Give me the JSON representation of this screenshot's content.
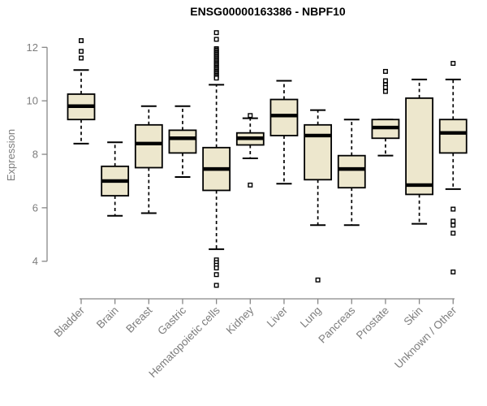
{
  "title": "ENSG00000163386 - NBPF10",
  "y_axis": {
    "label": "Expression"
  },
  "colors": {
    "background": "#FFFFFF",
    "box_fill": "#EDE7CD",
    "box_stroke": "#000000",
    "median": "#000000",
    "axis": "#878787",
    "label_text": "#7D7D7D",
    "title_text": "#000000"
  },
  "chart_data": {
    "type": "boxplot",
    "title": "ENSG00000163386 - NBPF10",
    "xlabel": "",
    "ylabel": "Expression",
    "yticks": [
      4,
      6,
      8,
      10,
      12
    ],
    "ylim": [
      2.9,
      12.8
    ],
    "grid": false,
    "legend": "none",
    "categories": [
      "Bladder",
      "Brain",
      "Breast",
      "Gastric",
      "Hematopoietic cells",
      "Kidney",
      "Liver",
      "Lung",
      "Pancreas",
      "Prostate",
      "Skin",
      "Unknown / Other"
    ],
    "series": [
      {
        "name": "Bladder",
        "whisker_low": 8.4,
        "q1": 9.3,
        "median": 9.8,
        "q3": 10.25,
        "whisker_high": 11.15,
        "outliers_high": [
          11.6,
          11.85,
          12.25
        ],
        "outliers_low": []
      },
      {
        "name": "Brain",
        "whisker_low": 5.7,
        "q1": 6.45,
        "median": 7.0,
        "q3": 7.55,
        "whisker_high": 8.45,
        "outliers_high": [],
        "outliers_low": []
      },
      {
        "name": "Breast",
        "whisker_low": 5.8,
        "q1": 7.5,
        "median": 8.4,
        "q3": 9.1,
        "whisker_high": 9.8,
        "outliers_high": [],
        "outliers_low": []
      },
      {
        "name": "Gastric",
        "whisker_low": 7.15,
        "q1": 8.05,
        "median": 8.6,
        "q3": 8.9,
        "whisker_high": 9.8,
        "outliers_high": [],
        "outliers_low": []
      },
      {
        "name": "Hematopoietic cells",
        "whisker_low": 4.45,
        "q1": 6.65,
        "median": 7.45,
        "q3": 8.25,
        "whisker_high": 10.6,
        "outliers_high": [
          12.55,
          12.3,
          11.95,
          11.9,
          11.85,
          11.8,
          11.75,
          11.7,
          11.65,
          11.6,
          11.55,
          11.5,
          11.45,
          11.4,
          11.35,
          11.3,
          11.25,
          11.2,
          11.15,
          11.1,
          11.05,
          11.0,
          10.95,
          10.9,
          10.85
        ],
        "outliers_low": [
          4.05,
          3.95,
          3.85,
          3.75,
          3.5,
          3.1
        ]
      },
      {
        "name": "Kidney",
        "whisker_low": 7.85,
        "q1": 8.35,
        "median": 8.6,
        "q3": 8.8,
        "whisker_high": 9.35,
        "outliers_high": [
          9.45
        ],
        "outliers_low": [
          6.85
        ]
      },
      {
        "name": "Liver",
        "whisker_low": 6.9,
        "q1": 8.7,
        "median": 9.45,
        "q3": 10.05,
        "whisker_high": 10.75,
        "outliers_high": [],
        "outliers_low": []
      },
      {
        "name": "Lung",
        "whisker_low": 5.35,
        "q1": 7.05,
        "median": 8.7,
        "q3": 9.1,
        "whisker_high": 9.65,
        "outliers_high": [],
        "outliers_low": [
          3.3
        ]
      },
      {
        "name": "Pancreas",
        "whisker_low": 5.35,
        "q1": 6.75,
        "median": 7.45,
        "q3": 7.95,
        "whisker_high": 9.3,
        "outliers_high": [],
        "outliers_low": []
      },
      {
        "name": "Prostate",
        "whisker_low": 7.95,
        "q1": 8.6,
        "median": 9.0,
        "q3": 9.3,
        "whisker_high": 9.3,
        "outliers_high": [
          11.1,
          10.75,
          10.6,
          10.5,
          10.35
        ],
        "outliers_low": []
      },
      {
        "name": "Skin",
        "whisker_low": 5.4,
        "q1": 6.5,
        "median": 6.85,
        "q3": 10.1,
        "whisker_high": 10.8,
        "outliers_high": [],
        "outliers_low": []
      },
      {
        "name": "Unknown / Other",
        "whisker_low": 6.7,
        "q1": 8.05,
        "median": 8.8,
        "q3": 9.3,
        "whisker_high": 10.8,
        "outliers_high": [
          11.4
        ],
        "outliers_low": [
          5.95,
          5.5,
          5.35,
          5.05,
          3.6
        ]
      }
    ]
  }
}
